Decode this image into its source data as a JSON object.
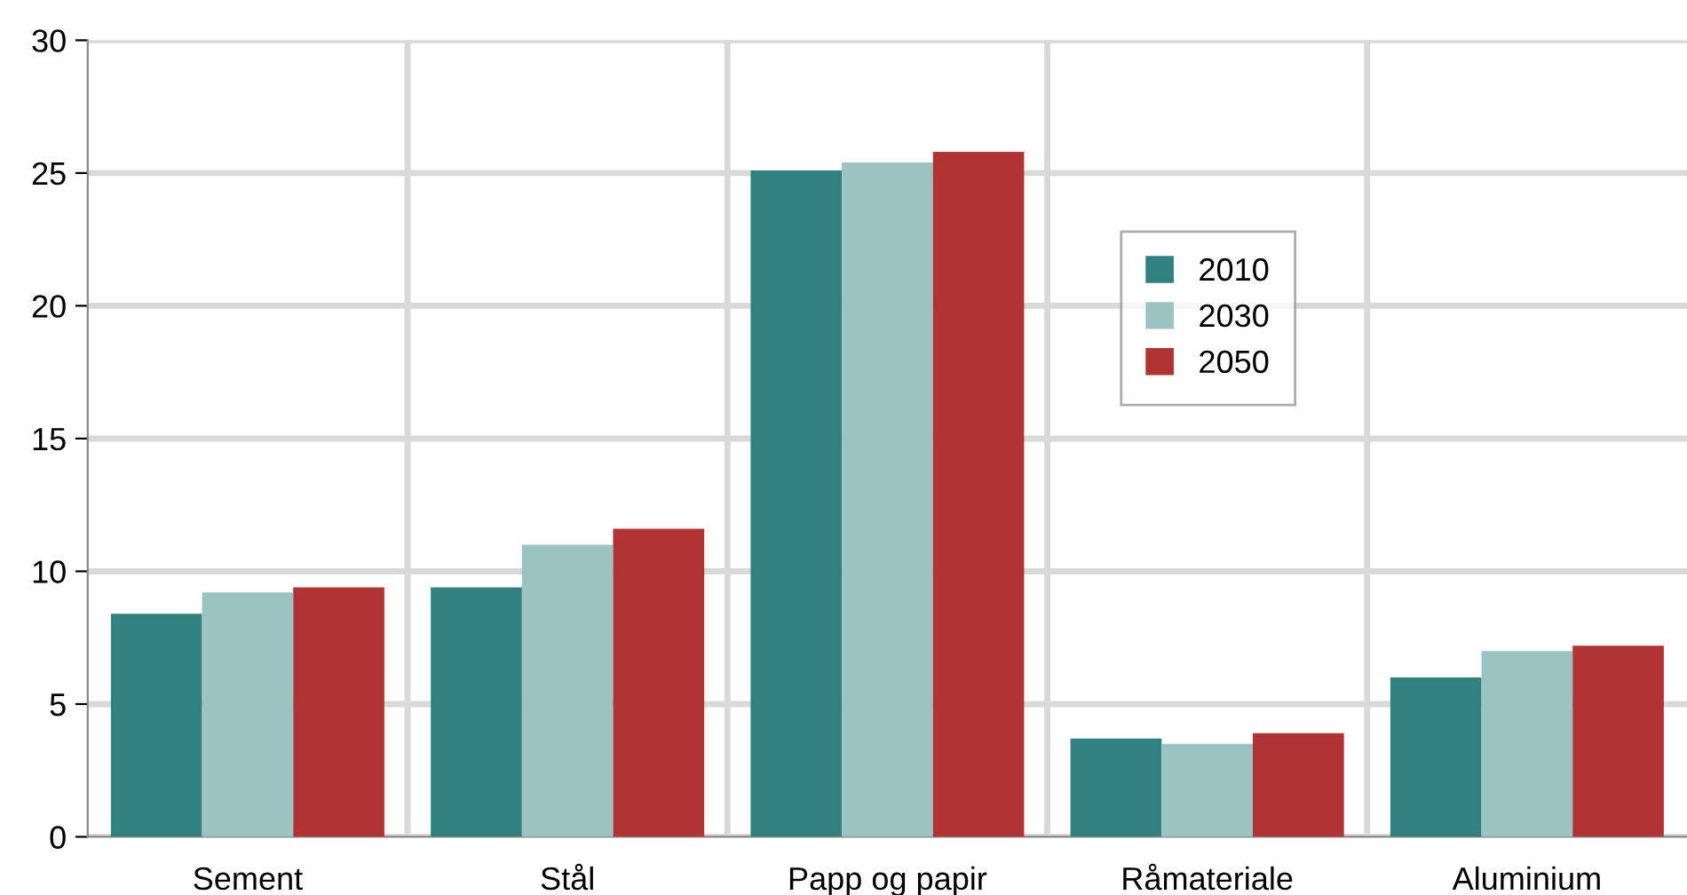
{
  "chart_data": {
    "type": "bar",
    "categories": [
      "Sement",
      "Stål",
      "Papp og papir",
      "Råmateriale",
      "Aluminium"
    ],
    "series": [
      {
        "name": "2010",
        "color": "#31827f",
        "values": [
          8.4,
          9.4,
          25.1,
          3.7,
          6.0
        ]
      },
      {
        "name": "2030",
        "color": "#9bc3c1",
        "values": [
          9.2,
          11.0,
          25.4,
          3.5,
          7.0
        ]
      },
      {
        "name": "2050",
        "color": "#b03434",
        "values": [
          9.4,
          11.6,
          25.8,
          3.9,
          7.2
        ]
      }
    ],
    "ylim": [
      0,
      30
    ],
    "yticks": [
      0,
      5,
      10,
      15,
      20,
      25,
      30
    ],
    "grid": true,
    "legend": "top right"
  }
}
